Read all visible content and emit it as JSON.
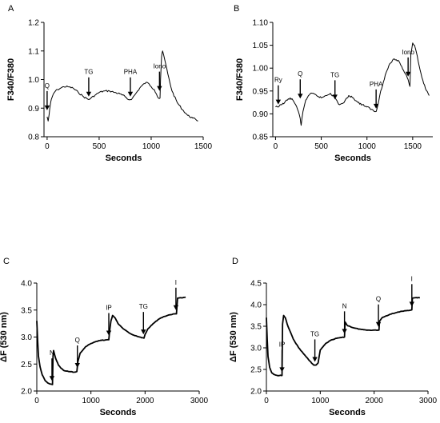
{
  "chart_data": [
    {
      "type": "line",
      "panel_label": "A",
      "xlabel": "Seconds",
      "ylabel": "F340/F380",
      "xlim": [
        -30,
        1500
      ],
      "ylim": [
        0.8,
        1.2
      ],
      "xticks": [
        0,
        500,
        1000,
        1500
      ],
      "yticks": [
        0.8,
        0.9,
        1.0,
        1.1,
        1.2
      ],
      "ytick_labels": [
        "0.8",
        "0.9",
        "1.0",
        "1.1",
        "1.2"
      ],
      "series": [
        {
          "x": [
            0,
            10,
            20,
            30,
            40,
            60,
            80,
            100,
            130,
            160,
            200,
            250,
            300,
            350,
            400,
            420,
            460,
            500,
            550,
            600,
            650,
            700,
            750,
            780,
            800,
            820,
            850,
            900,
            950,
            980,
            1000,
            1030,
            1050,
            1070,
            1085,
            1090,
            1100,
            1110,
            1130,
            1160,
            1200,
            1250,
            1300,
            1350,
            1400,
            1430,
            1450
          ],
          "y": [
            0.87,
            0.855,
            0.88,
            0.91,
            0.93,
            0.95,
            0.96,
            0.965,
            0.97,
            0.975,
            0.975,
            0.97,
            0.955,
            0.94,
            0.93,
            0.935,
            0.945,
            0.955,
            0.96,
            0.96,
            0.955,
            0.95,
            0.94,
            0.93,
            0.93,
            0.935,
            0.95,
            0.975,
            0.99,
            0.985,
            0.975,
            0.965,
            0.95,
            0.935,
            0.935,
            1.0,
            1.08,
            1.1,
            1.07,
            1.02,
            0.96,
            0.92,
            0.895,
            0.875,
            0.865,
            0.86,
            0.855
          ]
        }
      ],
      "annotations": [
        {
          "label": "Q",
          "x": 0,
          "y": 0.887
        },
        {
          "label": "TG",
          "x": 400,
          "y": 0.935
        },
        {
          "label": "PHA",
          "x": 800,
          "y": 0.935
        },
        {
          "label": "Iono",
          "x": 1080,
          "y": 0.955
        }
      ]
    },
    {
      "type": "line",
      "panel_label": "B",
      "xlabel": "Seconds",
      "ylabel": "F340/F380",
      "xlim": [
        -30,
        1720
      ],
      "ylim": [
        0.85,
        1.1
      ],
      "xticks": [
        0,
        500,
        1000,
        1500
      ],
      "yticks": [
        0.85,
        0.9,
        0.95,
        1.0,
        1.05,
        1.1
      ],
      "ytick_labels": [
        "0.85",
        "0.90",
        "0.95",
        "1.00",
        "1.05",
        "1.10"
      ],
      "series": [
        {
          "x": [
            0,
            30,
            60,
            100,
            130,
            160,
            190,
            220,
            250,
            270,
            280,
            300,
            330,
            360,
            400,
            450,
            500,
            550,
            600,
            650,
            680,
            700,
            750,
            800,
            850,
            900,
            950,
            1000,
            1050,
            1080,
            1100,
            1120,
            1150,
            1180,
            1200,
            1250,
            1300,
            1350,
            1400,
            1430,
            1450,
            1470,
            1480,
            1500,
            1520,
            1540,
            1560,
            1600,
            1640,
            1680
          ],
          "y": [
            0.915,
            0.915,
            0.92,
            0.925,
            0.93,
            0.935,
            0.93,
            0.92,
            0.905,
            0.89,
            0.875,
            0.905,
            0.93,
            0.94,
            0.945,
            0.94,
            0.935,
            0.94,
            0.945,
            0.935,
            0.925,
            0.92,
            0.925,
            0.94,
            0.935,
            0.925,
            0.92,
            0.915,
            0.91,
            0.905,
            0.905,
            0.92,
            0.95,
            0.97,
            0.985,
            1.01,
            1.02,
            1.015,
            0.995,
            0.985,
            0.975,
            0.96,
            1.03,
            1.055,
            1.05,
            1.035,
            1.015,
            0.98,
            0.955,
            0.94
          ]
        }
      ],
      "annotations": [
        {
          "label": "Ry",
          "x": 30,
          "y": 0.917
        },
        {
          "label": "Q",
          "x": 270,
          "y": 0.93
        },
        {
          "label": "TG",
          "x": 650,
          "y": 0.928
        },
        {
          "label": "PHA",
          "x": 1100,
          "y": 0.908
        },
        {
          "label": "Iono",
          "x": 1450,
          "y": 0.978
        }
      ]
    },
    {
      "type": "line",
      "panel_label": "C",
      "xlabel": "Seconds",
      "ylabel": "ΔF (530 nm)",
      "xlim": [
        0,
        3000
      ],
      "ylim": [
        2.0,
        4.0
      ],
      "xticks": [
        0,
        1000,
        2000,
        3000
      ],
      "yticks": [
        2.0,
        2.5,
        3.0,
        3.5,
        4.0
      ],
      "ytick_labels": [
        "2.0",
        "2.5",
        "3.0",
        "3.5",
        "4.0"
      ],
      "series": [
        {
          "x": [
            0,
            15,
            30,
            60,
            100,
            150,
            200,
            250,
            290,
            300,
            310,
            350,
            400,
            450,
            500,
            600,
            700,
            740,
            760,
            800,
            900,
            1000,
            1100,
            1200,
            1300,
            1330,
            1350,
            1370,
            1400,
            1450,
            1500,
            1600,
            1700,
            1800,
            1900,
            1980,
            2000,
            2050,
            2150,
            2250,
            2350,
            2450,
            2550,
            2580,
            2600,
            2700,
            2750
          ],
          "y": [
            3.3,
            2.95,
            2.65,
            2.45,
            2.3,
            2.2,
            2.15,
            2.13,
            2.12,
            2.65,
            2.75,
            2.6,
            2.48,
            2.42,
            2.38,
            2.36,
            2.35,
            2.36,
            2.55,
            2.7,
            2.82,
            2.88,
            2.92,
            2.94,
            2.95,
            2.95,
            3.15,
            3.3,
            3.4,
            3.35,
            3.25,
            3.15,
            3.08,
            3.03,
            3.0,
            2.98,
            3.05,
            3.15,
            3.25,
            3.33,
            3.38,
            3.41,
            3.43,
            3.43,
            3.72,
            3.73,
            3.74
          ]
        }
      ],
      "annotations": [
        {
          "label": "N",
          "x": 280,
          "y": 2.16
        },
        {
          "label": "Q",
          "x": 750,
          "y": 2.4
        },
        {
          "label": "IP",
          "x": 1330,
          "y": 3.0
        },
        {
          "label": "TG",
          "x": 1970,
          "y": 3.02
        },
        {
          "label": "I",
          "x": 2570,
          "y": 3.47
        }
      ]
    },
    {
      "type": "line",
      "panel_label": "D",
      "xlabel": "Seconds",
      "ylabel": "ΔF (530 nm)",
      "xlim": [
        0,
        3000
      ],
      "ylim": [
        2.0,
        4.5
      ],
      "xticks": [
        0,
        1000,
        2000,
        3000
      ],
      "yticks": [
        2.0,
        2.5,
        3.0,
        3.5,
        4.0,
        4.5
      ],
      "ytick_labels": [
        "2.0",
        "2.5",
        "3.0",
        "3.5",
        "4.0",
        "4.5"
      ],
      "series": [
        {
          "x": [
            0,
            15,
            30,
            60,
            100,
            150,
            200,
            280,
            290,
            300,
            320,
            350,
            400,
            500,
            600,
            700,
            800,
            880,
            920,
            960,
            1000,
            1100,
            1200,
            1300,
            1400,
            1450,
            1460,
            1500,
            1600,
            1700,
            1800,
            1900,
            2000,
            2090,
            2100,
            2150,
            2300,
            2450,
            2600,
            2700,
            2710,
            2750,
            2850
          ],
          "y": [
            3.7,
            3.2,
            2.8,
            2.55,
            2.42,
            2.38,
            2.36,
            2.36,
            2.36,
            3.55,
            3.75,
            3.7,
            3.5,
            3.2,
            3.0,
            2.85,
            2.7,
            2.6,
            2.6,
            2.65,
            2.95,
            3.1,
            3.18,
            3.22,
            3.24,
            3.25,
            3.6,
            3.52,
            3.47,
            3.44,
            3.42,
            3.41,
            3.41,
            3.41,
            3.62,
            3.7,
            3.78,
            3.83,
            3.86,
            3.88,
            4.15,
            4.16,
            4.16
          ]
        }
      ],
      "annotations": [
        {
          "label": "IP",
          "x": 290,
          "y": 2.4
        },
        {
          "label": "TG",
          "x": 900,
          "y": 2.64
        },
        {
          "label": "N",
          "x": 1450,
          "y": 3.29
        },
        {
          "label": "Q",
          "x": 2080,
          "y": 3.45
        },
        {
          "label": "I",
          "x": 2700,
          "y": 3.92
        }
      ]
    }
  ]
}
